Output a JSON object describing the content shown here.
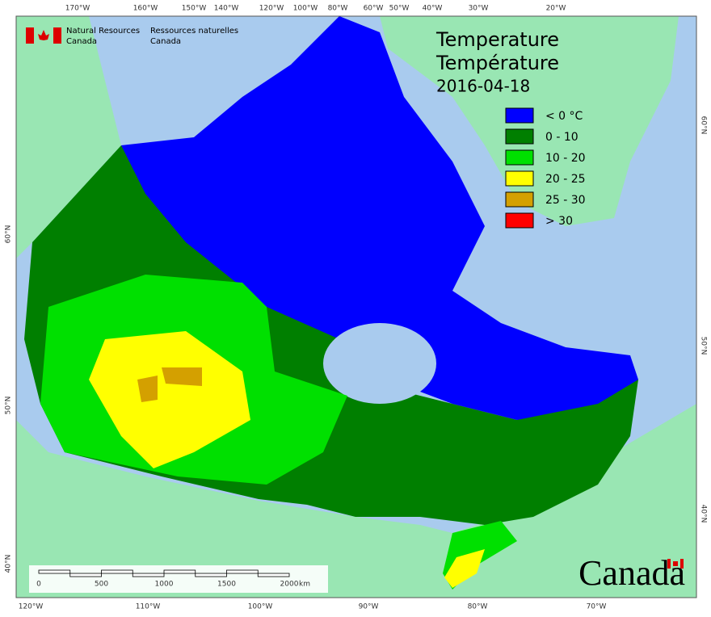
{
  "header": {
    "org_en": [
      "Natural Resources",
      "Canada"
    ],
    "org_fr": [
      "Ressources naturelles",
      "Canada"
    ]
  },
  "title": {
    "en": "Temperature",
    "fr": "Température",
    "date": "2016-04-18"
  },
  "legend": [
    {
      "label": "< 0 °C",
      "color": "#0000ff"
    },
    {
      "label": "0 - 10",
      "color": "#007f00"
    },
    {
      "label": "10 - 20",
      "color": "#00e000"
    },
    {
      "label": "20 - 25",
      "color": "#ffff00"
    },
    {
      "label": "25 - 30",
      "color": "#d4a000"
    },
    {
      "label": "> 30",
      "color": "#ff0000"
    }
  ],
  "graticule": {
    "top": [
      "170°W",
      "160°W",
      "150°W",
      "140°W",
      "120°W",
      "100°W",
      "80°W",
      "60°W",
      "50°W",
      "40°W",
      "30°W",
      "20°W"
    ],
    "bottom": [
      "120°W",
      "110°W",
      "100°W",
      "90°W",
      "80°W",
      "70°W"
    ],
    "left": [
      "60°N",
      "50°N",
      "40°N"
    ],
    "right": [
      "60°N",
      "50°N",
      "40°N"
    ]
  },
  "scale_bar": {
    "labels": [
      "0",
      "500",
      "1000",
      "1500",
      "2000"
    ],
    "unit": "km"
  },
  "wordmark": "Canada"
}
